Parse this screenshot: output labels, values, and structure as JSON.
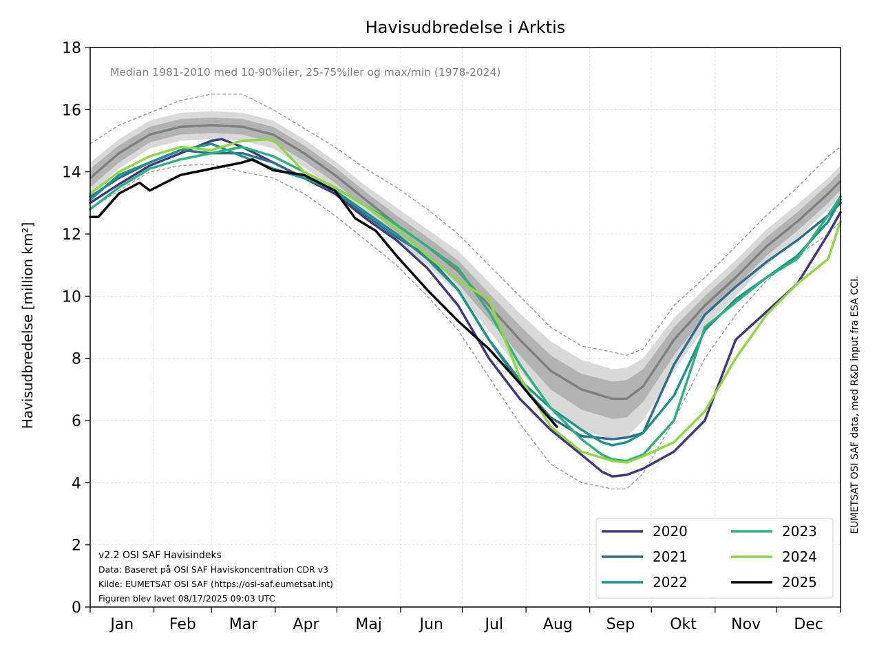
{
  "chart_data": {
    "type": "line",
    "title": "Havisudbredelse i Arktis",
    "subtitle": "Median 1981-2010 med 10-90%iler, 25-75%iler og max/min (1978-2024)",
    "ylabel": "Havisudbredelse [million km²]",
    "xlabel": "",
    "side_note": "EUMETSAT OSI SAF data, med R&D input fra ESA CCI.",
    "footer_lines": [
      "v2.2 OSI SAF Havisindeks",
      "Data: Baseret på OSI SAF Haviskoncentration CDR v3",
      "Kilde: EUMETSAT OSI SAF (https://osi-saf.eumetsat.int)",
      "Figuren blev lavet 08/17/2025 09:03 UTC"
    ],
    "months": [
      "Jan",
      "Feb",
      "Mar",
      "Apr",
      "Maj",
      "Jun",
      "Jul",
      "Aug",
      "Sep",
      "Okt",
      "Nov",
      "Dec"
    ],
    "x_unit": "day of year",
    "xlim": [
      1,
      366
    ],
    "ylim": [
      0,
      18
    ],
    "yticks": [
      0,
      2,
      4,
      6,
      8,
      10,
      12,
      14,
      16,
      18
    ],
    "grid": true,
    "legend_position": "lower-right",
    "legend_columns": 2,
    "climatology": {
      "day": [
        1,
        15,
        30,
        45,
        60,
        75,
        90,
        105,
        120,
        135,
        150,
        165,
        180,
        195,
        210,
        225,
        240,
        255,
        262,
        270,
        285,
        300,
        315,
        330,
        345,
        360,
        366
      ],
      "median": [
        13.8,
        14.6,
        15.2,
        15.45,
        15.5,
        15.45,
        15.2,
        14.6,
        13.9,
        13.1,
        12.3,
        11.6,
        10.8,
        9.7,
        8.6,
        7.6,
        7.0,
        6.7,
        6.7,
        7.1,
        8.6,
        9.7,
        10.6,
        11.6,
        12.4,
        13.3,
        13.7
      ],
      "p25": [
        13.5,
        14.3,
        14.95,
        15.2,
        15.25,
        15.2,
        14.95,
        14.35,
        13.65,
        12.85,
        12.05,
        11.3,
        10.4,
        9.25,
        8.1,
        7.0,
        6.35,
        6.05,
        6.1,
        6.6,
        8.1,
        9.35,
        10.3,
        11.3,
        12.1,
        13.0,
        13.4
      ],
      "p75": [
        14.1,
        14.85,
        15.45,
        15.7,
        15.75,
        15.7,
        15.45,
        14.85,
        14.15,
        13.35,
        12.6,
        11.9,
        11.15,
        10.1,
        9.05,
        8.1,
        7.5,
        7.25,
        7.3,
        7.65,
        9.0,
        10.0,
        10.9,
        11.9,
        12.7,
        13.6,
        14.0
      ],
      "p10": [
        13.3,
        14.1,
        14.75,
        15.0,
        15.05,
        15.0,
        14.75,
        14.15,
        13.45,
        12.65,
        11.8,
        11.0,
        10.1,
        8.9,
        7.6,
        6.4,
        5.7,
        5.4,
        5.45,
        6.0,
        7.6,
        9.0,
        10.0,
        11.0,
        11.85,
        12.8,
        13.2
      ],
      "p90": [
        14.3,
        15.05,
        15.65,
        15.9,
        15.95,
        15.9,
        15.65,
        15.05,
        14.35,
        13.55,
        12.85,
        12.15,
        11.45,
        10.45,
        9.45,
        8.55,
        7.95,
        7.65,
        7.7,
        8.0,
        9.3,
        10.25,
        11.15,
        12.15,
        12.95,
        13.8,
        14.2
      ],
      "min": [
        12.8,
        13.4,
        14.0,
        14.2,
        14.25,
        14.0,
        13.8,
        13.3,
        12.6,
        11.8,
        11.0,
        10.0,
        8.9,
        7.4,
        5.9,
        4.6,
        4.0,
        3.8,
        3.8,
        4.3,
        6.0,
        8.0,
        9.4,
        10.5,
        11.3,
        12.0,
        12.4
      ],
      "max": [
        14.9,
        15.5,
        15.9,
        16.3,
        16.5,
        16.5,
        16.0,
        15.4,
        14.8,
        14.1,
        13.5,
        12.8,
        12.0,
        11.0,
        10.0,
        9.0,
        8.4,
        8.2,
        8.1,
        8.3,
        9.7,
        10.6,
        11.6,
        12.6,
        13.5,
        14.5,
        14.8
      ]
    },
    "series": [
      {
        "name": "2020",
        "color": "#3f3a7f",
        "x": [
          1,
          15,
          30,
          45,
          60,
          65,
          75,
          90,
          105,
          120,
          135,
          150,
          165,
          180,
          195,
          210,
          225,
          240,
          250,
          255,
          262,
          270,
          285,
          300,
          315,
          330,
          345,
          360,
          366
        ],
        "y": [
          13.0,
          13.6,
          14.2,
          14.6,
          15.0,
          15.05,
          14.8,
          14.3,
          13.8,
          13.3,
          12.5,
          11.8,
          10.9,
          9.7,
          8.0,
          6.7,
          5.7,
          4.9,
          4.35,
          4.2,
          4.25,
          4.45,
          5.0,
          6.0,
          8.6,
          9.5,
          10.4,
          12.0,
          12.7
        ]
      },
      {
        "name": "2021",
        "color": "#2e6f8e",
        "x": [
          1,
          15,
          30,
          45,
          60,
          75,
          90,
          105,
          120,
          135,
          150,
          165,
          180,
          195,
          210,
          225,
          240,
          255,
          262,
          270,
          285,
          300,
          315,
          330,
          345,
          360,
          366
        ],
        "y": [
          13.2,
          13.8,
          14.3,
          14.7,
          14.6,
          14.6,
          14.3,
          13.8,
          13.4,
          12.6,
          11.9,
          11.3,
          10.2,
          8.6,
          7.2,
          6.1,
          5.5,
          5.4,
          5.45,
          5.6,
          7.8,
          9.4,
          10.3,
          11.1,
          11.8,
          12.6,
          13.0
        ]
      },
      {
        "name": "2022",
        "color": "#21918c",
        "x": [
          1,
          15,
          30,
          45,
          60,
          75,
          90,
          105,
          120,
          135,
          150,
          165,
          180,
          195,
          210,
          225,
          240,
          250,
          255,
          262,
          270,
          285,
          300,
          315,
          330,
          345,
          360,
          366
        ],
        "y": [
          13.1,
          13.9,
          14.3,
          14.7,
          14.9,
          14.5,
          14.1,
          13.8,
          13.4,
          12.7,
          12.0,
          11.2,
          10.2,
          8.6,
          7.3,
          6.4,
          5.7,
          5.3,
          5.2,
          5.3,
          5.6,
          6.8,
          8.9,
          9.9,
          10.6,
          11.3,
          12.4,
          13.1
        ]
      },
      {
        "name": "2023",
        "color": "#2db27d",
        "x": [
          1,
          15,
          30,
          45,
          60,
          75,
          90,
          105,
          120,
          135,
          150,
          165,
          180,
          195,
          210,
          225,
          240,
          250,
          255,
          262,
          270,
          285,
          300,
          315,
          330,
          345,
          360,
          366
        ],
        "y": [
          12.8,
          13.5,
          14.1,
          14.4,
          14.6,
          14.8,
          14.5,
          14.0,
          13.5,
          12.9,
          12.3,
          11.6,
          10.9,
          9.5,
          7.8,
          6.4,
          5.4,
          4.9,
          4.75,
          4.7,
          4.9,
          6.0,
          9.0,
          9.8,
          10.6,
          11.2,
          12.6,
          13.2
        ]
      },
      {
        "name": "2024",
        "color": "#8fd744",
        "x": [
          1,
          15,
          30,
          45,
          60,
          75,
          90,
          105,
          120,
          135,
          150,
          165,
          180,
          195,
          210,
          225,
          240,
          255,
          262,
          270,
          285,
          300,
          315,
          330,
          345,
          360,
          366
        ],
        "y": [
          13.3,
          14.0,
          14.5,
          14.8,
          14.7,
          15.0,
          15.05,
          14.0,
          13.5,
          12.9,
          12.2,
          11.3,
          10.5,
          9.9,
          7.4,
          5.8,
          5.0,
          4.7,
          4.65,
          4.85,
          5.3,
          6.3,
          8.0,
          9.4,
          10.4,
          11.2,
          12.4
        ]
      },
      {
        "name": "2025",
        "color": "#000000",
        "x": [
          1,
          5,
          15,
          25,
          30,
          45,
          60,
          75,
          80,
          90,
          105,
          120,
          130,
          140,
          150,
          165,
          180,
          195,
          210,
          220,
          228
        ],
        "y": [
          12.55,
          12.55,
          13.3,
          13.65,
          13.4,
          13.9,
          14.1,
          14.3,
          14.4,
          14.05,
          13.9,
          13.4,
          12.5,
          12.1,
          11.3,
          10.2,
          9.2,
          8.3,
          7.2,
          6.4,
          5.8
        ]
      }
    ]
  }
}
